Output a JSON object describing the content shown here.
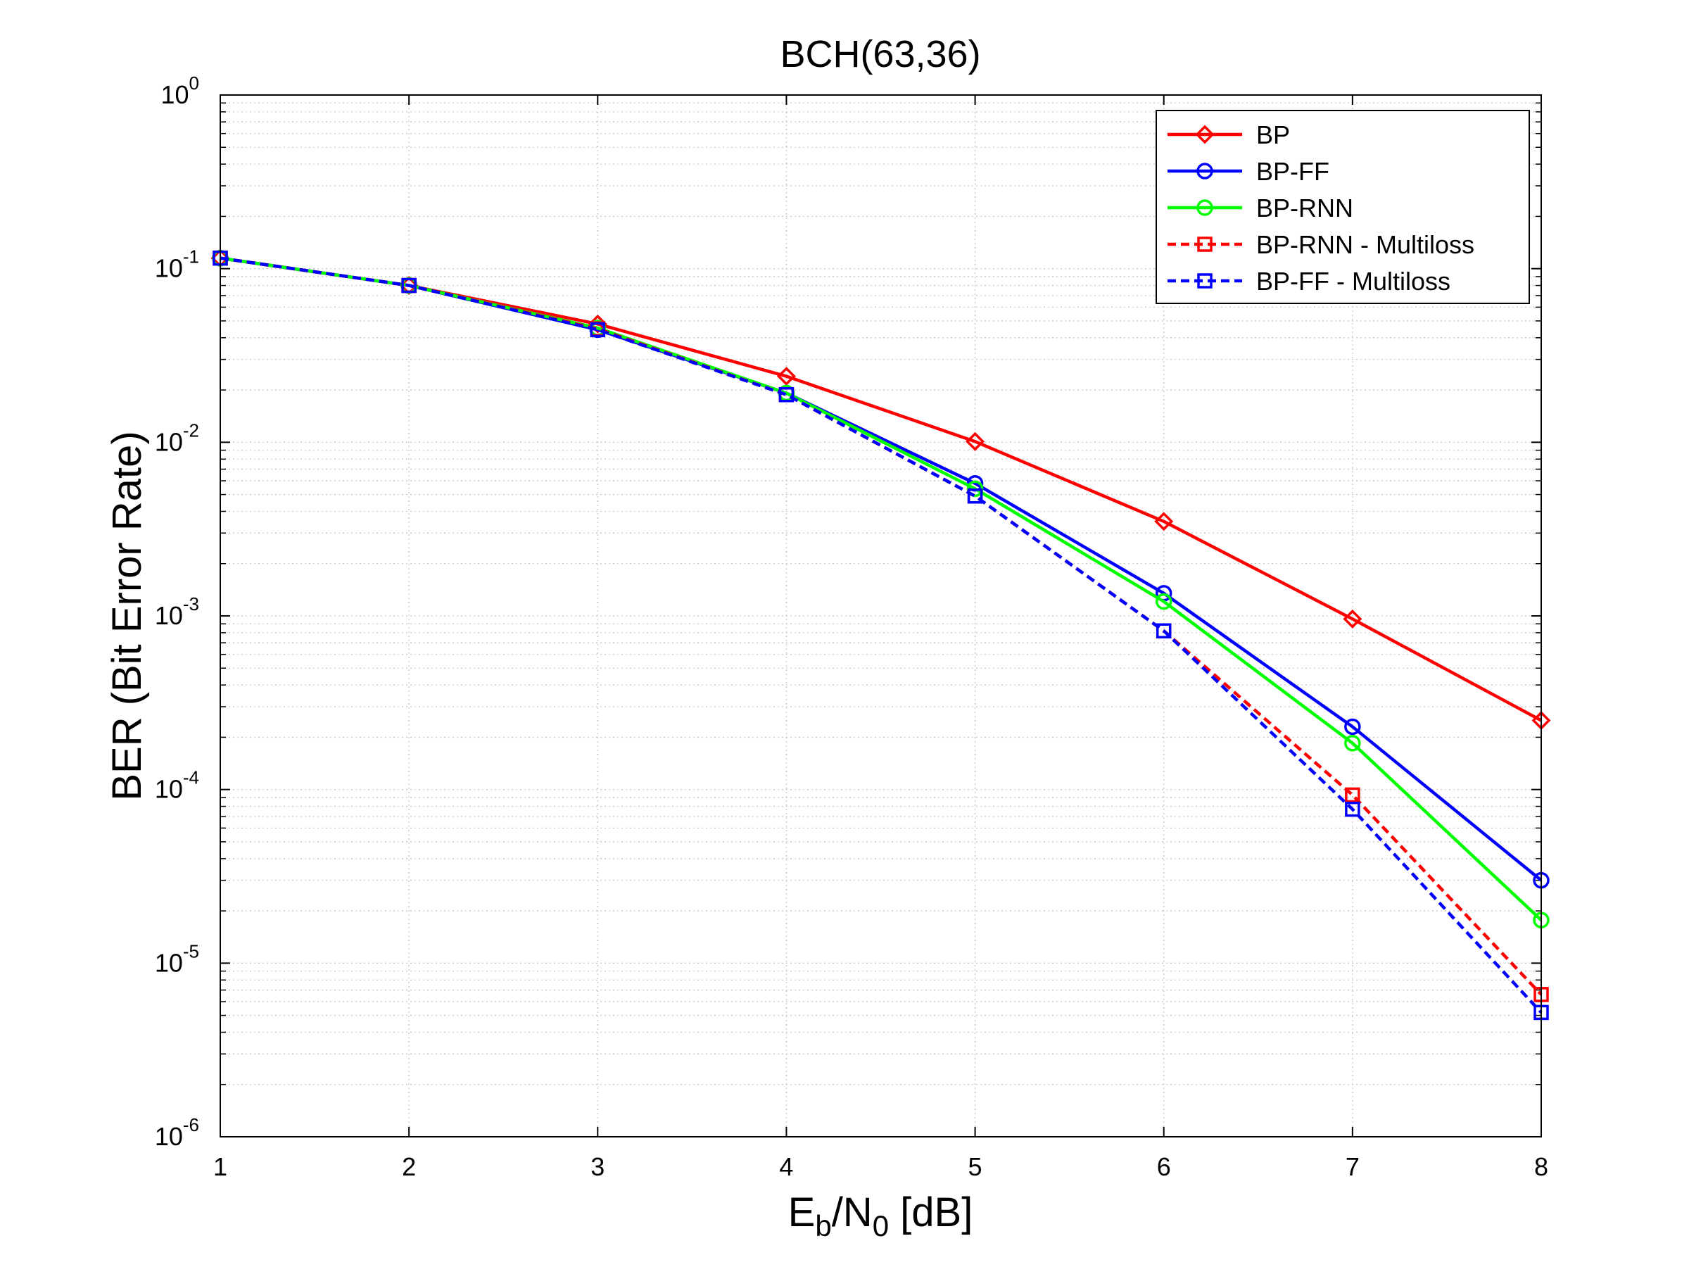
{
  "chart_data": {
    "type": "line",
    "title": "BCH(63,36)",
    "xlabel": {
      "main": "E",
      "sub1": "b",
      "mid": "/N",
      "sub2": "0",
      "tail": " [dB]"
    },
    "ylabel": "BER (Bit Error Rate)",
    "xlim": [
      1,
      8
    ],
    "ylim": [
      1e-06,
      1
    ],
    "yscale": "log",
    "grid": true,
    "legend_position": "top-right",
    "x_ticks": [
      "1",
      "2",
      "3",
      "4",
      "5",
      "6",
      "7",
      "8"
    ],
    "y_ticks": [
      {
        "base": "10",
        "exp": "0"
      },
      {
        "base": "10",
        "exp": "-1"
      },
      {
        "base": "10",
        "exp": "-2"
      },
      {
        "base": "10",
        "exp": "-3"
      },
      {
        "base": "10",
        "exp": "-4"
      },
      {
        "base": "10",
        "exp": "-5"
      },
      {
        "base": "10",
        "exp": "-6"
      }
    ],
    "x": [
      1,
      2,
      3,
      4,
      5,
      6,
      7,
      8
    ],
    "series": [
      {
        "name": "BP",
        "color": "#ff0000",
        "marker": "diamond",
        "dash": "solid",
        "values": [
          0.115,
          0.08,
          0.048,
          0.024,
          0.0101,
          0.0035,
          0.00096,
          0.00025
        ]
      },
      {
        "name": "BP-FF",
        "color": "#0000ff",
        "marker": "circle",
        "dash": "solid",
        "values": [
          0.115,
          0.08,
          0.0445,
          0.0192,
          0.0058,
          0.00135,
          0.00023,
          3e-05
        ]
      },
      {
        "name": "BP-RNN",
        "color": "#00ff00",
        "marker": "circle",
        "dash": "solid",
        "values": [
          0.115,
          0.08,
          0.0455,
          0.0192,
          0.0054,
          0.00121,
          0.000185,
          1.77e-05
        ]
      },
      {
        "name": "BP-RNN - Multiloss",
        "color": "#ff0000",
        "marker": "square",
        "dash": "dashed",
        "values": [
          0.115,
          0.08,
          0.045,
          0.0188,
          0.0049,
          0.00082,
          9.3e-05,
          6.6e-06
        ]
      },
      {
        "name": "BP-FF - Multiloss",
        "color": "#0000ff",
        "marker": "square",
        "dash": "dashed",
        "values": [
          0.115,
          0.08,
          0.0445,
          0.0188,
          0.0049,
          0.00082,
          7.7e-05,
          5.2e-06
        ]
      }
    ]
  }
}
